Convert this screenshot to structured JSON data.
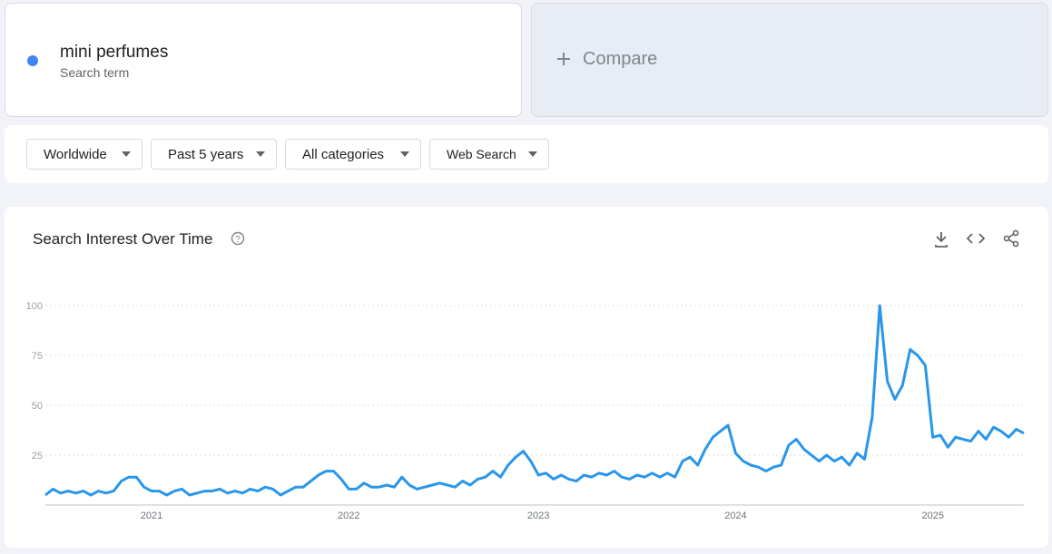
{
  "search_term": {
    "name": "mini perfumes",
    "label": "Search term"
  },
  "compare": {
    "label": "Compare"
  },
  "filters": [
    "Worldwide",
    "Past 5 years",
    "All categories",
    "Web Search"
  ],
  "chart_data": {
    "type": "line",
    "title": "Search Interest Over Time",
    "categories": [
      null,
      null,
      null,
      null,
      null,
      null,
      null,
      null,
      null,
      null,
      null,
      null,
      null,
      null,
      "2021",
      null,
      null,
      null,
      null,
      null,
      null,
      null,
      null,
      null,
      null,
      null,
      null,
      null,
      null,
      null,
      null,
      null,
      null,
      null,
      null,
      null,
      null,
      null,
      null,
      null,
      "2022",
      null,
      null,
      null,
      null,
      null,
      null,
      null,
      null,
      null,
      null,
      null,
      null,
      null,
      null,
      null,
      null,
      null,
      null,
      null,
      null,
      null,
      null,
      null,
      null,
      "2023",
      null,
      null,
      null,
      null,
      null,
      null,
      null,
      null,
      null,
      null,
      null,
      null,
      null,
      null,
      null,
      null,
      null,
      null,
      null,
      null,
      null,
      null,
      null,
      null,
      null,
      "2024",
      null,
      null,
      null,
      null,
      null,
      null,
      null,
      null,
      null,
      null,
      null,
      null,
      null,
      null,
      null,
      null,
      null,
      null,
      null,
      null,
      null,
      null,
      null,
      null,
      null,
      "2025",
      null,
      null,
      null,
      null,
      null,
      null,
      null,
      null,
      null,
      null,
      null,
      null
    ],
    "series": [
      {
        "name": "mini perfumes",
        "color": "#2a96ea",
        "values": [
          5,
          8,
          6,
          7,
          6,
          7,
          5,
          7,
          6,
          7,
          12,
          14,
          14,
          9,
          7,
          7,
          5,
          7,
          8,
          5,
          6,
          7,
          7,
          8,
          6,
          7,
          6,
          8,
          7,
          9,
          8,
          5,
          7,
          9,
          9,
          12,
          15,
          17,
          17,
          13,
          8,
          8,
          11,
          9,
          9,
          10,
          9,
          14,
          10,
          8,
          9,
          10,
          11,
          10,
          9,
          12,
          10,
          13,
          14,
          17,
          14,
          20,
          24,
          27,
          22,
          15,
          16,
          13,
          15,
          13,
          12,
          15,
          14,
          16,
          15,
          17,
          14,
          13,
          15,
          14,
          16,
          14,
          16,
          14,
          22,
          24,
          20,
          28,
          34,
          37,
          40,
          26,
          22,
          20,
          19,
          17,
          19,
          20,
          30,
          33,
          28,
          25,
          22,
          25,
          22,
          24,
          20,
          26,
          23,
          44,
          100,
          62,
          53,
          60,
          78,
          75,
          70,
          34,
          35,
          29,
          34,
          33,
          32,
          37,
          33,
          39,
          37,
          34,
          38,
          36
        ]
      }
    ],
    "ylim": [
      0,
      100
    ],
    "yticks": [
      25,
      50,
      75,
      100
    ],
    "grid": true
  }
}
